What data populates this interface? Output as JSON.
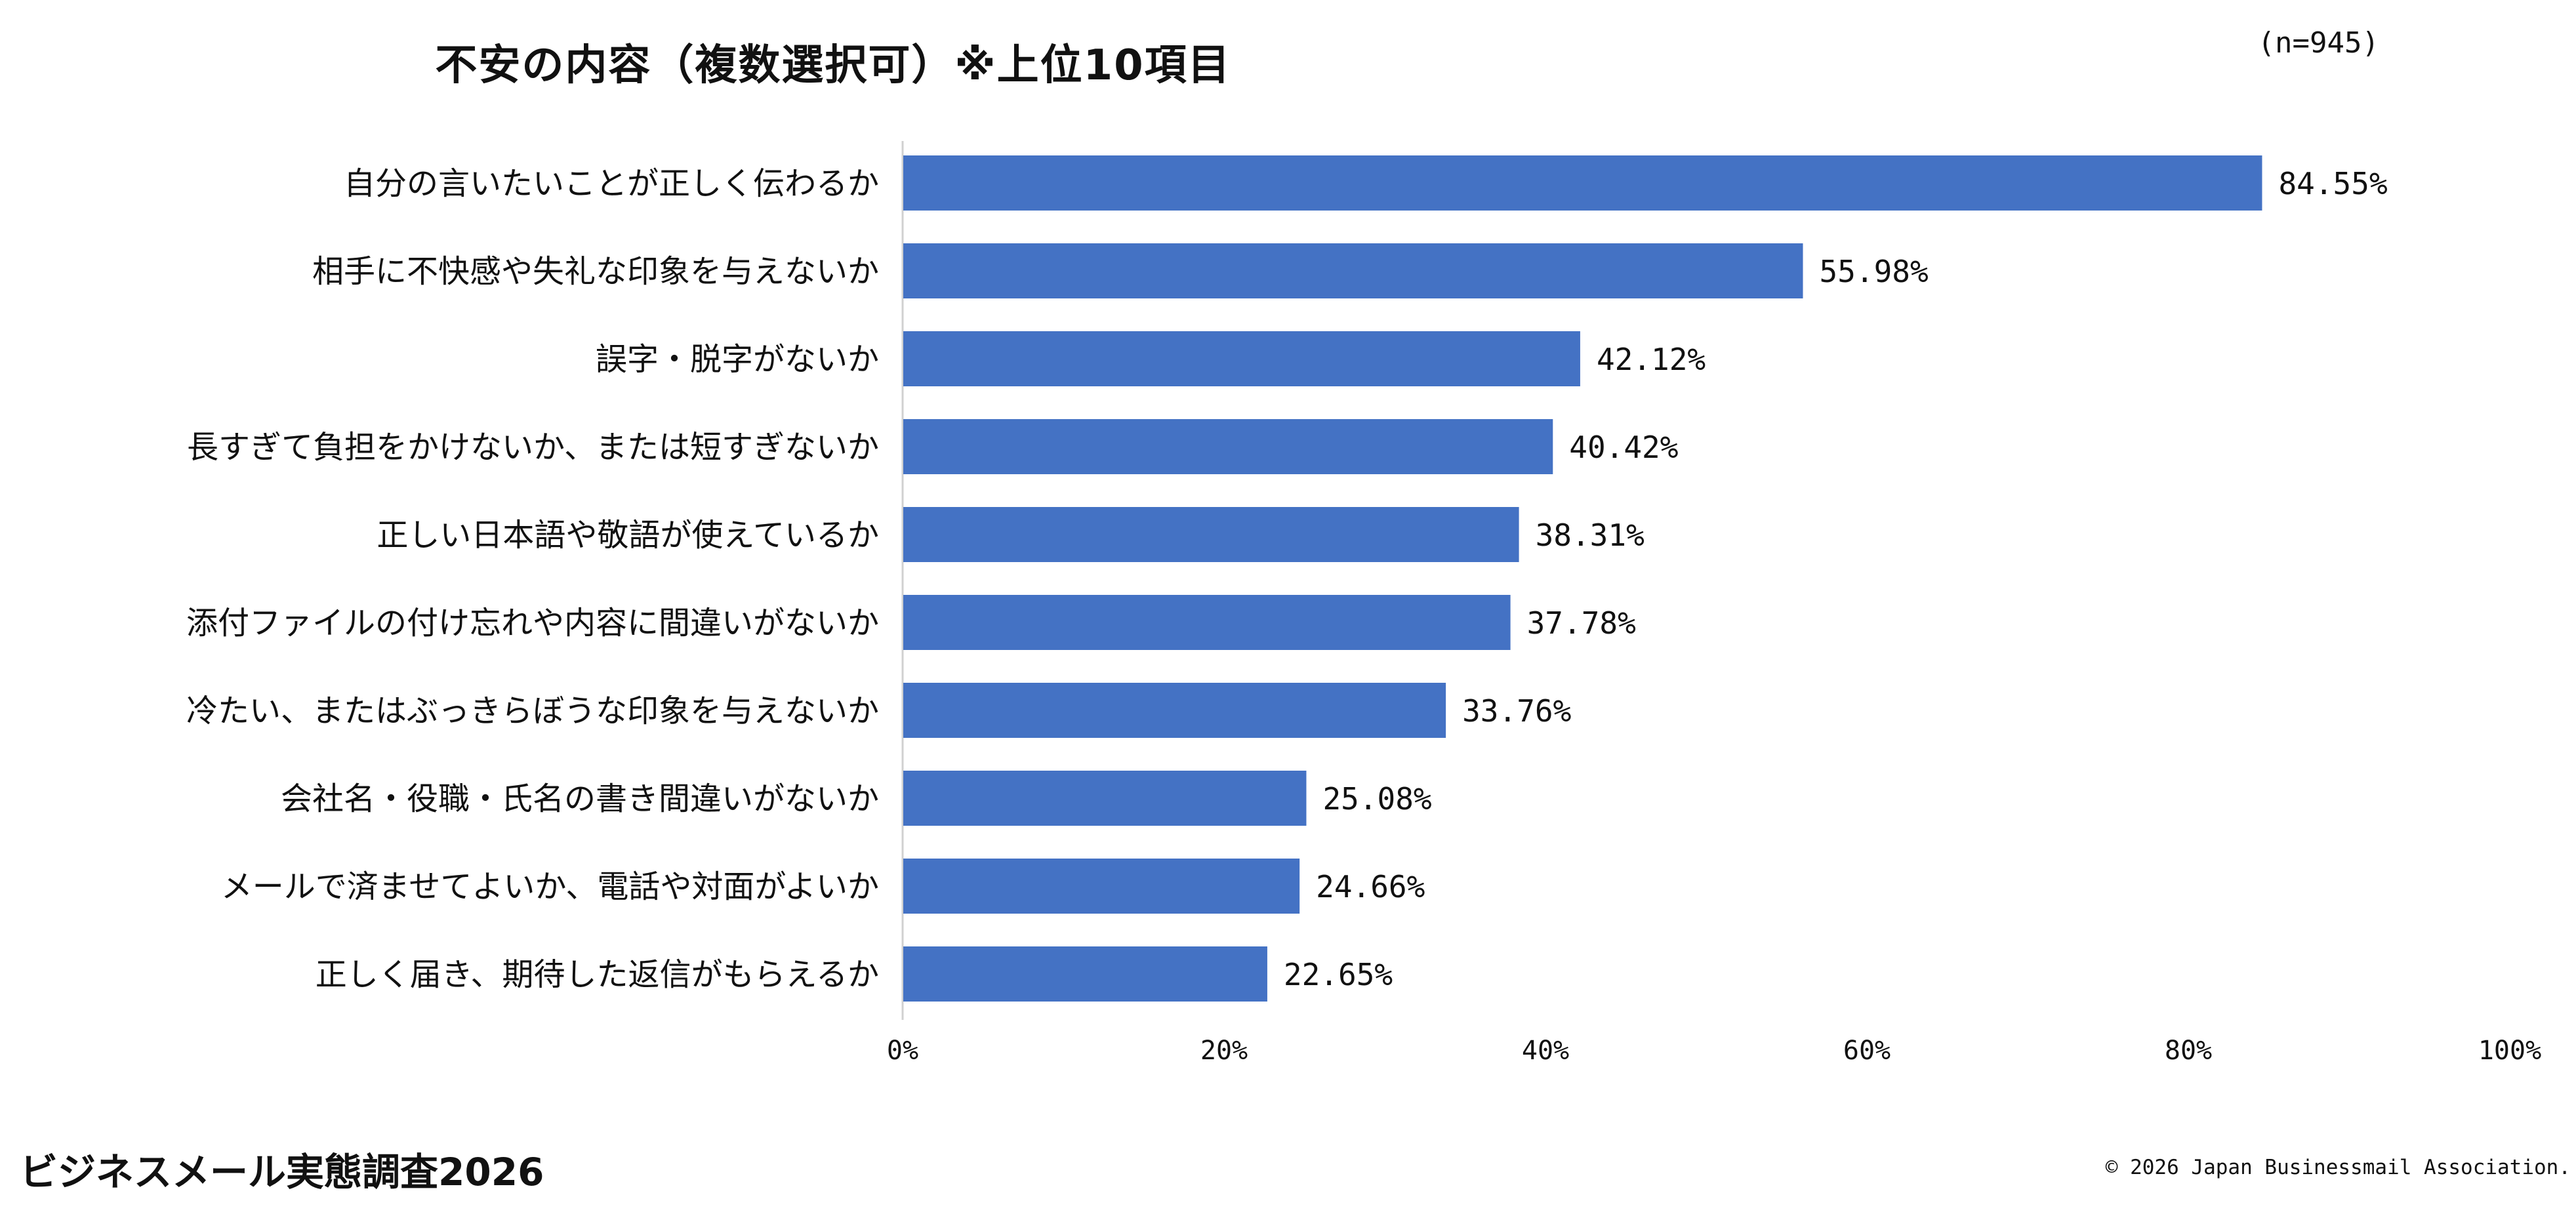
{
  "header": {
    "title": "不安の内容（複数選択可）※上位10項目",
    "sample_size": "(n=945)"
  },
  "footer": {
    "survey_name": "ビジネスメール実態調査2026",
    "copyright": "© 2026 Japan Businessmail Association."
  },
  "colors": {
    "bar": "#4472C4",
    "axis": "#d0d0d0"
  },
  "chart_data": {
    "type": "bar",
    "orientation": "horizontal",
    "categories": [
      "自分の言いたいことが正しく伝わるか",
      "相手に不快感や失礼な印象を与えないか",
      "誤字・脱字がないか",
      "長すぎて負担をかけないか、または短すぎないか",
      "正しい日本語や敬語が使えているか",
      "添付ファイルの付け忘れや内容に間違いがないか",
      "冷たい、またはぶっきらぼうな印象を与えないか",
      "会社名・役職・氏名の書き間違いがないか",
      "メールで済ませてよいか、電話や対面がよいか",
      "正しく届き、期待した返信がもらえるか"
    ],
    "values": [
      84.55,
      55.98,
      42.12,
      40.42,
      38.31,
      37.78,
      33.76,
      25.08,
      24.66,
      22.65
    ],
    "value_labels": [
      "84.55%",
      "55.98%",
      "42.12%",
      "40.42%",
      "38.31%",
      "37.78%",
      "33.76%",
      "25.08%",
      "24.66%",
      "22.65%"
    ],
    "xlim": [
      0,
      100
    ],
    "x_ticks": [
      0,
      20,
      40,
      60,
      80,
      100
    ],
    "x_tick_labels": [
      "0%",
      "20%",
      "40%",
      "60%",
      "80%",
      "100%"
    ],
    "grid": false,
    "legend": "none"
  }
}
